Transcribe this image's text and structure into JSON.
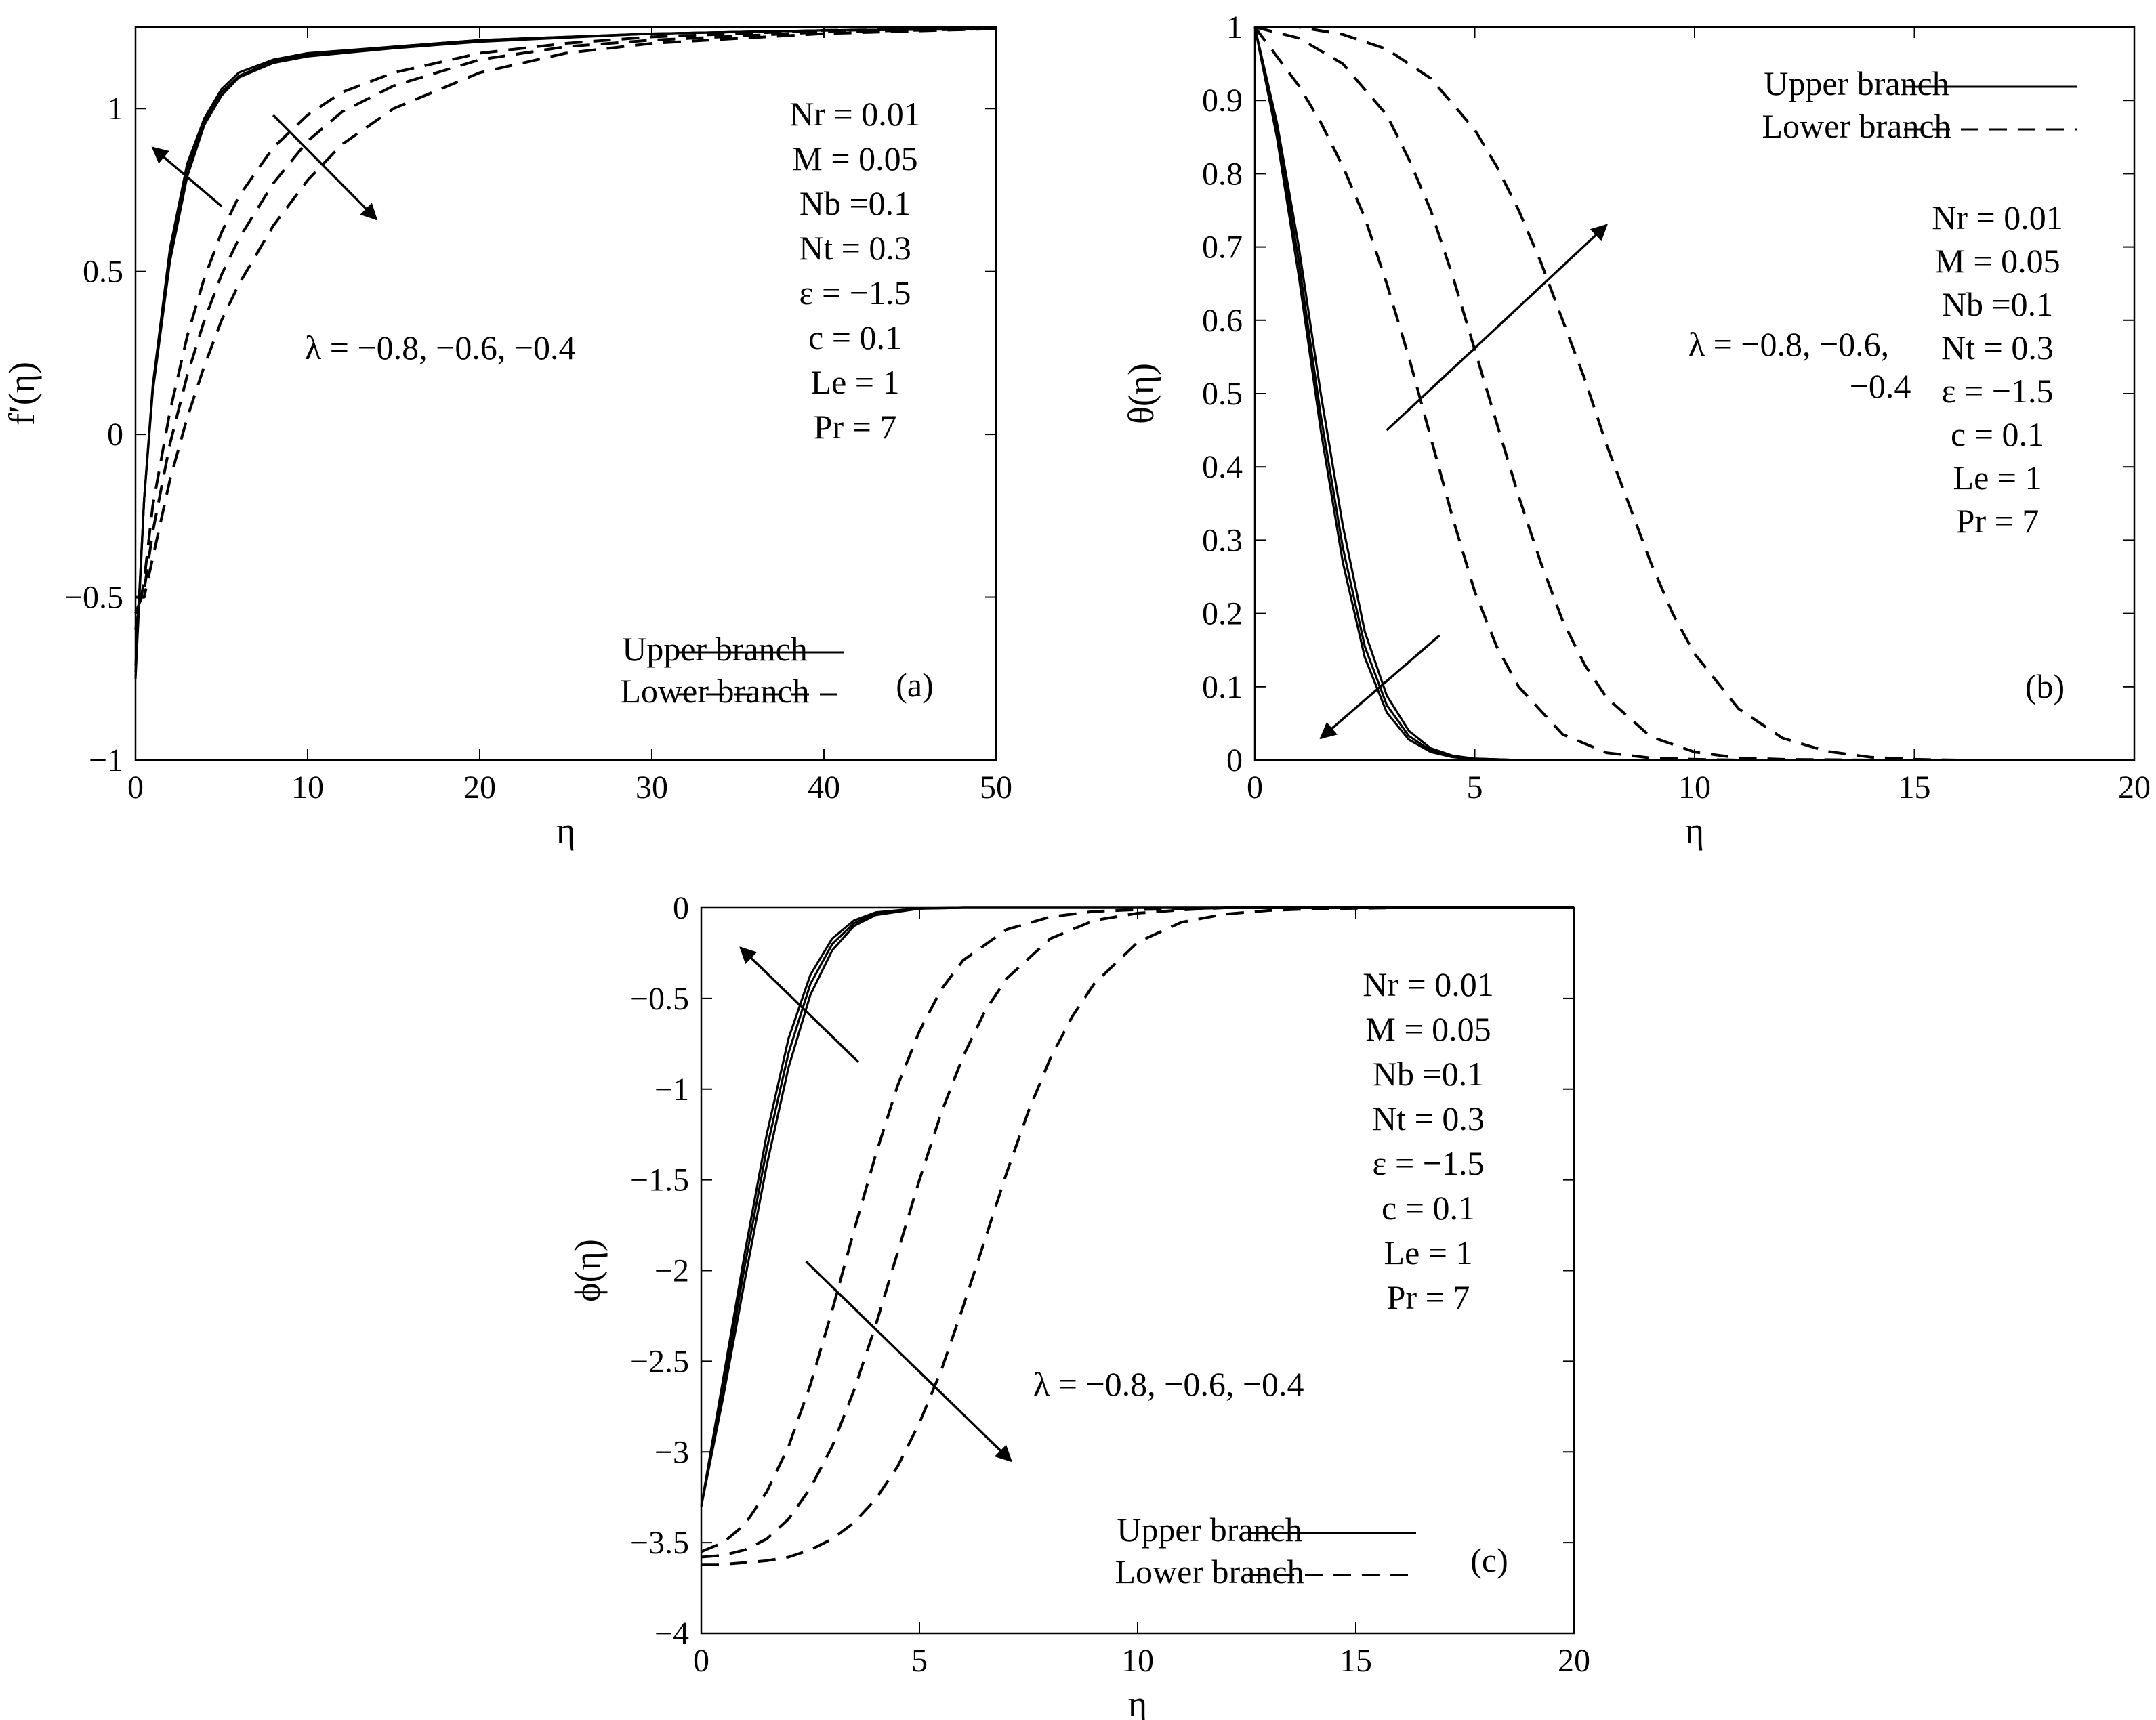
{
  "chart_data": [
    {
      "type": "line",
      "panel_label": "(a)",
      "xlabel": "η",
      "ylabel": "f′(η)",
      "xlim": [
        0,
        50
      ],
      "ylim": [
        -1,
        1.25
      ],
      "xticks": [
        0,
        10,
        20,
        30,
        40,
        50
      ],
      "xtick_labels": [
        "0",
        "10",
        "20",
        "30",
        "40",
        "50"
      ],
      "yticks": [
        -1,
        -0.5,
        0,
        0.5,
        1
      ],
      "ytick_labels": [
        "−1",
        "−0.5",
        "0",
        "0.5",
        "1"
      ],
      "params": [
        "Nr = 0.01",
        "M = 0.05",
        "Nb =0.1",
        "Nt = 0.3",
        "ε = −1.5",
        "c = 0.1",
        "Le = 1",
        "Pr = 7"
      ],
      "lambda_text": [
        "λ = −0.8, −0.6, −0.4"
      ],
      "legend": {
        "upper": "Upper branch",
        "lower": "Lower branch",
        "position": "bottom-right"
      },
      "arrows": [
        {
          "from": [
            5,
            0.7
          ],
          "to": [
            1,
            0.88
          ]
        },
        {
          "from": [
            8,
            0.98
          ],
          "to": [
            14,
            0.66
          ]
        }
      ],
      "series": [
        {
          "name": "Upper branch λ = −0.8",
          "style": "solid",
          "x": [
            0,
            0.5,
            1,
            2,
            3,
            4,
            5,
            6,
            8,
            10,
            15,
            20,
            30,
            40,
            50
          ],
          "y": [
            -0.75,
            -0.2,
            0.15,
            0.57,
            0.83,
            0.97,
            1.06,
            1.11,
            1.15,
            1.17,
            1.19,
            1.21,
            1.23,
            1.24,
            1.245
          ]
        },
        {
          "name": "Upper branch λ = −0.6",
          "style": "solid",
          "x": [
            0,
            0.5,
            1,
            2,
            3,
            4,
            5,
            6,
            8,
            10,
            15,
            20,
            30,
            40,
            50
          ],
          "y": [
            -0.73,
            -0.2,
            0.14,
            0.55,
            0.81,
            0.96,
            1.05,
            1.1,
            1.145,
            1.165,
            1.19,
            1.21,
            1.23,
            1.24,
            1.245
          ]
        },
        {
          "name": "Upper branch λ = −0.4",
          "style": "solid",
          "x": [
            0,
            0.5,
            1,
            2,
            3,
            4,
            5,
            6,
            8,
            10,
            15,
            20,
            30,
            40,
            50
          ],
          "y": [
            -0.71,
            -0.2,
            0.13,
            0.53,
            0.79,
            0.95,
            1.04,
            1.095,
            1.14,
            1.16,
            1.185,
            1.205,
            1.23,
            1.24,
            1.245
          ]
        },
        {
          "name": "Lower branch λ = −0.8",
          "style": "dashed",
          "x": [
            0,
            0.5,
            1,
            2,
            3,
            4,
            5,
            6,
            8,
            10,
            12,
            15,
            20,
            25,
            30,
            40,
            50
          ],
          "y": [
            -0.6,
            -0.45,
            -0.22,
            0.07,
            0.3,
            0.48,
            0.62,
            0.73,
            0.88,
            0.98,
            1.05,
            1.11,
            1.17,
            1.2,
            1.22,
            1.24,
            1.245
          ]
        },
        {
          "name": "Lower branch λ = −0.6",
          "style": "dashed",
          "x": [
            0,
            0.5,
            1,
            2,
            3,
            4,
            5,
            6,
            8,
            10,
            12,
            15,
            20,
            25,
            30,
            40,
            50
          ],
          "y": [
            -0.55,
            -0.48,
            -0.3,
            -0.03,
            0.18,
            0.35,
            0.49,
            0.6,
            0.77,
            0.9,
            0.99,
            1.07,
            1.15,
            1.19,
            1.21,
            1.235,
            1.245
          ]
        },
        {
          "name": "Lower branch λ = −0.4",
          "style": "dashed",
          "x": [
            0,
            0.5,
            1,
            2,
            3,
            4,
            5,
            6,
            8,
            10,
            12,
            15,
            20,
            25,
            30,
            40,
            50
          ],
          "y": [
            -0.5,
            -0.5,
            -0.38,
            -0.14,
            0.05,
            0.21,
            0.35,
            0.46,
            0.64,
            0.78,
            0.89,
            1.0,
            1.11,
            1.17,
            1.2,
            1.23,
            1.245
          ]
        }
      ]
    },
    {
      "type": "line",
      "panel_label": "(b)",
      "xlabel": "η",
      "ylabel": "θ(η)",
      "xlim": [
        0,
        20
      ],
      "ylim": [
        0,
        1
      ],
      "xticks": [
        0,
        5,
        10,
        15,
        20
      ],
      "xtick_labels": [
        "0",
        "5",
        "10",
        "15",
        "20"
      ],
      "yticks": [
        0,
        0.1,
        0.2,
        0.3,
        0.4,
        0.5,
        0.6,
        0.7,
        0.8,
        0.9,
        1
      ],
      "ytick_labels": [
        "0",
        "0.1",
        "0.2",
        "0.3",
        "0.4",
        "0.5",
        "0.6",
        "0.7",
        "0.8",
        "0.9",
        "1"
      ],
      "params": [
        "Nr = 0.01",
        "M = 0.05",
        "Nb =0.1",
        "Nt = 0.3",
        "ε = −1.5",
        "c = 0.1",
        "Le = 1",
        "Pr = 7"
      ],
      "lambda_text": [
        "λ = −0.8, −0.6,",
        "−0.4"
      ],
      "legend": {
        "upper": "Upper branch",
        "lower": "Lower branch",
        "position": "top-right"
      },
      "arrows": [
        {
          "from": [
            3,
            0.45
          ],
          "to": [
            8,
            0.73
          ]
        },
        {
          "from": [
            4.2,
            0.17
          ],
          "to": [
            1.5,
            0.03
          ]
        }
      ],
      "series": [
        {
          "name": "Upper branch λ = −0.8",
          "style": "solid",
          "x": [
            0,
            0.5,
            1,
            1.5,
            2,
            2.5,
            3,
            3.5,
            4,
            4.5,
            5,
            6,
            8,
            20
          ],
          "y": [
            1,
            0.85,
            0.66,
            0.45,
            0.27,
            0.14,
            0.065,
            0.028,
            0.011,
            0.004,
            0.0015,
            0,
            0,
            0
          ]
        },
        {
          "name": "Upper branch λ = −0.6",
          "style": "solid",
          "x": [
            0,
            0.5,
            1,
            1.5,
            2,
            2.5,
            3,
            3.5,
            4,
            4.5,
            5,
            6,
            8,
            20
          ],
          "y": [
            1,
            0.86,
            0.68,
            0.47,
            0.29,
            0.155,
            0.075,
            0.033,
            0.013,
            0.005,
            0.002,
            0,
            0,
            0
          ]
        },
        {
          "name": "Upper branch λ = −0.4",
          "style": "solid",
          "x": [
            0,
            0.5,
            1,
            1.5,
            2,
            2.5,
            3,
            3.5,
            4,
            4.5,
            5,
            6,
            8,
            20
          ],
          "y": [
            1,
            0.87,
            0.7,
            0.5,
            0.32,
            0.175,
            0.088,
            0.04,
            0.016,
            0.006,
            0.002,
            0,
            0,
            0
          ]
        },
        {
          "name": "Lower branch λ = −0.8",
          "style": "dashed",
          "x": [
            0,
            0.5,
            1,
            1.5,
            2,
            2.5,
            3,
            3.5,
            4,
            4.5,
            5,
            5.5,
            6,
            7,
            8,
            9,
            10,
            11,
            12,
            20
          ],
          "y": [
            1,
            0.96,
            0.92,
            0.87,
            0.81,
            0.74,
            0.65,
            0.55,
            0.44,
            0.33,
            0.23,
            0.155,
            0.1,
            0.035,
            0.01,
            0.003,
            0.001,
            0,
            0,
            0
          ]
        },
        {
          "name": "Lower branch λ = −0.6",
          "style": "dashed",
          "x": [
            0,
            1,
            2,
            3,
            3.5,
            4,
            4.5,
            5,
            5.5,
            6,
            6.5,
            7,
            7.5,
            8,
            9,
            10,
            11,
            12,
            14,
            20
          ],
          "y": [
            1,
            0.985,
            0.95,
            0.88,
            0.82,
            0.75,
            0.66,
            0.56,
            0.46,
            0.36,
            0.27,
            0.19,
            0.13,
            0.085,
            0.032,
            0.011,
            0.003,
            0.001,
            0,
            0
          ]
        },
        {
          "name": "Lower branch λ = −0.4",
          "style": "dashed",
          "x": [
            0,
            1,
            2,
            3,
            4,
            5,
            5.5,
            6,
            6.5,
            7,
            7.5,
            8,
            8.5,
            9,
            9.5,
            10,
            11,
            12,
            13,
            14,
            15,
            16,
            20
          ],
          "y": [
            1,
            1,
            0.99,
            0.97,
            0.93,
            0.86,
            0.81,
            0.75,
            0.68,
            0.6,
            0.52,
            0.43,
            0.35,
            0.27,
            0.2,
            0.145,
            0.07,
            0.03,
            0.012,
            0.004,
            0.001,
            0,
            0
          ]
        }
      ]
    },
    {
      "type": "line",
      "panel_label": "(c)",
      "xlabel": "η",
      "ylabel": "ϕ(η)",
      "xlim": [
        0,
        20
      ],
      "ylim": [
        -4,
        0
      ],
      "xticks": [
        0,
        5,
        10,
        15,
        20
      ],
      "xtick_labels": [
        "0",
        "5",
        "10",
        "15",
        "20"
      ],
      "yticks": [
        -4,
        -3.5,
        -3,
        -2.5,
        -2,
        -1.5,
        -1,
        -0.5,
        0
      ],
      "ytick_labels": [
        "−4",
        "−3.5",
        "−3",
        "−2.5",
        "−2",
        "−1.5",
        "−1",
        "−0.5",
        "0"
      ],
      "params": [
        "Nr = 0.01",
        "M = 0.05",
        "Nb =0.1",
        "Nt = 0.3",
        "ε = −1.5",
        "c = 0.1",
        "Le = 1",
        "Pr = 7"
      ],
      "lambda_text": [
        "λ = −0.8, −0.6, −0.4"
      ],
      "legend": {
        "upper": "Upper branch",
        "lower": "Lower branch",
        "position": "bottom-right"
      },
      "arrows": [
        {
          "from": [
            3.6,
            -0.85
          ],
          "to": [
            0.9,
            -0.22
          ]
        },
        {
          "from": [
            2.4,
            -1.95
          ],
          "to": [
            7.1,
            -3.05
          ]
        }
      ],
      "series": [
        {
          "name": "Upper branch λ = −0.8",
          "style": "solid",
          "x": [
            0,
            0.5,
            1,
            1.5,
            2,
            2.5,
            3,
            3.5,
            4,
            5,
            6,
            20
          ],
          "y": [
            -3.3,
            -2.6,
            -1.9,
            -1.25,
            -0.72,
            -0.37,
            -0.17,
            -0.07,
            -0.025,
            -0.003,
            0,
            0
          ]
        },
        {
          "name": "Upper branch λ = −0.6",
          "style": "solid",
          "x": [
            0,
            0.5,
            1,
            1.5,
            2,
            2.5,
            3,
            3.5,
            4,
            5,
            6,
            20
          ],
          "y": [
            -3.3,
            -2.65,
            -1.97,
            -1.33,
            -0.8,
            -0.42,
            -0.2,
            -0.085,
            -0.032,
            -0.004,
            0,
            0
          ]
        },
        {
          "name": "Upper branch λ = −0.4",
          "style": "solid",
          "x": [
            0,
            0.5,
            1,
            1.5,
            2,
            2.5,
            3,
            3.5,
            4,
            5,
            6,
            20
          ],
          "y": [
            -3.3,
            -2.7,
            -2.05,
            -1.42,
            -0.88,
            -0.48,
            -0.235,
            -0.1,
            -0.04,
            -0.005,
            0,
            0
          ]
        },
        {
          "name": "Lower branch λ = −0.8",
          "style": "dashed",
          "x": [
            0,
            0.5,
            1,
            1.5,
            2,
            2.5,
            3,
            3.5,
            4,
            4.5,
            5,
            5.5,
            6,
            7,
            8,
            9,
            10,
            12,
            14,
            20
          ],
          "y": [
            -3.55,
            -3.5,
            -3.4,
            -3.22,
            -2.97,
            -2.63,
            -2.22,
            -1.78,
            -1.36,
            -0.98,
            -0.68,
            -0.45,
            -0.29,
            -0.12,
            -0.05,
            -0.02,
            -0.01,
            0,
            0,
            0
          ]
        },
        {
          "name": "Lower branch λ = −0.6",
          "style": "dashed",
          "x": [
            0,
            0.5,
            1,
            1.5,
            2,
            2.5,
            3,
            3.5,
            4,
            4.5,
            5,
            5.5,
            6,
            6.5,
            7,
            8,
            9,
            10,
            11,
            12,
            14,
            20
          ],
          "y": [
            -3.58,
            -3.57,
            -3.54,
            -3.48,
            -3.37,
            -3.2,
            -2.97,
            -2.66,
            -2.3,
            -1.9,
            -1.5,
            -1.13,
            -0.82,
            -0.57,
            -0.39,
            -0.17,
            -0.07,
            -0.03,
            -0.012,
            0,
            0,
            0
          ]
        },
        {
          "name": "Lower branch λ = −0.4",
          "style": "dashed",
          "x": [
            0,
            0.5,
            1,
            1.5,
            2,
            2.5,
            3,
            3.5,
            4,
            4.5,
            5,
            5.5,
            6,
            6.5,
            7,
            7.5,
            8,
            8.5,
            9,
            10,
            11,
            12,
            13,
            14,
            16,
            20
          ],
          "y": [
            -3.62,
            -3.62,
            -3.61,
            -3.6,
            -3.58,
            -3.54,
            -3.48,
            -3.39,
            -3.26,
            -3.08,
            -2.84,
            -2.55,
            -2.2,
            -1.83,
            -1.46,
            -1.12,
            -0.83,
            -0.6,
            -0.42,
            -0.19,
            -0.08,
            -0.035,
            -0.015,
            -0.006,
            0,
            0
          ]
        }
      ]
    }
  ]
}
